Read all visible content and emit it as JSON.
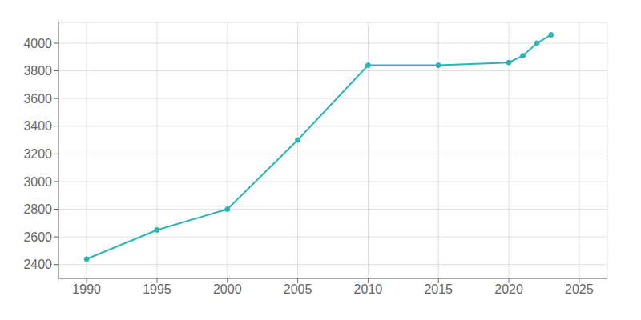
{
  "chart_data": {
    "type": "line",
    "x": [
      1990,
      1995,
      2000,
      2005,
      2010,
      2015,
      2020,
      2021,
      2022,
      2023
    ],
    "values": [
      2440,
      2650,
      2800,
      3300,
      3840,
      3840,
      3860,
      3910,
      4000,
      4060
    ],
    "color": "#2AB5B5",
    "marker": "circle",
    "xlim": [
      1988,
      2027
    ],
    "xticks": [
      1990,
      1995,
      2000,
      2005,
      2010,
      2015,
      2020,
      2025
    ],
    "ylim": [
      2300,
      4150
    ],
    "yticks": [
      2400,
      2600,
      2800,
      3000,
      3200,
      3400,
      3600,
      3800,
      4000
    ],
    "grid": true
  }
}
